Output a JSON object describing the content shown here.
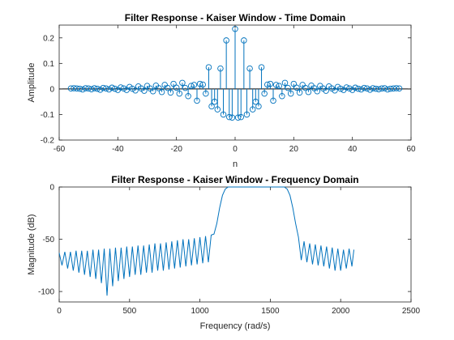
{
  "chart_data": [
    {
      "type": "stem",
      "title": "Filter Response - Kaiser Window - Time Domain",
      "xlabel": "n",
      "ylabel": "Amplitude",
      "xlim": [
        -60,
        60
      ],
      "ylim": [
        -0.2,
        0.25
      ],
      "xticks": [
        -60,
        -40,
        -20,
        0,
        20,
        40,
        60
      ],
      "yticks": [
        -0.2,
        -0.1,
        0,
        0.1,
        0.2
      ],
      "xtick_labels": [
        "-60",
        "-40",
        "-20",
        "0",
        "20",
        "40",
        "60"
      ],
      "ytick_labels": [
        "-0.2",
        "-0.1",
        "0",
        "0.1",
        "0.2"
      ],
      "baseline": 0,
      "color": "#0072BD",
      "x": [
        -56,
        -55,
        -54,
        -53,
        -52,
        -51,
        -50,
        -49,
        -48,
        -47,
        -46,
        -45,
        -44,
        -43,
        -42,
        -41,
        -40,
        -39,
        -38,
        -37,
        -36,
        -35,
        -34,
        -33,
        -32,
        -31,
        -30,
        -29,
        -28,
        -27,
        -26,
        -25,
        -24,
        -23,
        -22,
        -21,
        -20,
        -19,
        -18,
        -17,
        -16,
        -15,
        -14,
        -13,
        -12,
        -11,
        -10,
        -9,
        -8,
        -7,
        -6,
        -5,
        -4,
        -3,
        -2,
        -1,
        0,
        1,
        2,
        3,
        4,
        5,
        6,
        7,
        8,
        9,
        10,
        11,
        12,
        13,
        14,
        15,
        16,
        17,
        18,
        19,
        20,
        21,
        22,
        23,
        24,
        25,
        26,
        27,
        28,
        29,
        30,
        31,
        32,
        33,
        34,
        35,
        36,
        37,
        38,
        39,
        40,
        41,
        42,
        43,
        44,
        45,
        46,
        47,
        48,
        49,
        50,
        51,
        52,
        53,
        54,
        55,
        56
      ],
      "y": [
        0.002,
        0.003,
        0.002,
        0.001,
        -0.002,
        0.003,
        0.002,
        -0.001,
        0.003,
        0.001,
        -0.003,
        0.004,
        0.002,
        -0.002,
        0.005,
        0.001,
        -0.004,
        0.006,
        0.002,
        -0.004,
        0.008,
        0.001,
        -0.006,
        0.01,
        0.002,
        -0.007,
        0.012,
        0.002,
        -0.009,
        0.013,
        0.003,
        -0.012,
        0.016,
        0.004,
        -0.014,
        0.02,
        0.005,
        -0.018,
        0.024,
        0.004,
        -0.028,
        0.012,
        0.016,
        -0.046,
        0.02,
        0.017,
        -0.018,
        0.085,
        -0.068,
        -0.05,
        -0.08,
        0.08,
        -0.1,
        0.19,
        -0.11,
        -0.112,
        0.235,
        -0.112,
        -0.11,
        0.19,
        -0.1,
        0.08,
        -0.08,
        -0.05,
        -0.068,
        0.085,
        -0.018,
        0.017,
        0.02,
        -0.046,
        0.016,
        0.012,
        -0.028,
        0.024,
        0.004,
        -0.018,
        0.02,
        0.005,
        -0.014,
        0.016,
        0.004,
        -0.012,
        0.013,
        0.003,
        -0.009,
        0.012,
        0.002,
        -0.007,
        0.01,
        0.002,
        -0.006,
        0.008,
        0.001,
        -0.004,
        0.006,
        0.002,
        -0.004,
        0.005,
        0.001,
        -0.002,
        0.004,
        0.002,
        -0.003,
        0.003,
        0.001,
        -0.001,
        0.002,
        0.003,
        -0.002,
        0.001,
        0.002,
        0.003,
        0.002
      ]
    },
    {
      "type": "line",
      "title": "Filter Response - Kaiser Window - Frequency Domain",
      "xlabel": "Frequency (rad/s)",
      "ylabel": "Magnitude (dB)",
      "xlim": [
        0,
        2500
      ],
      "ylim": [
        -110,
        0
      ],
      "xticks": [
        0,
        500,
        1000,
        1500,
        2000,
        2500
      ],
      "yticks": [
        -100,
        -50,
        0
      ],
      "xtick_labels": [
        "0",
        "500",
        "1000",
        "1500",
        "2000",
        "2500"
      ],
      "ytick_labels": [
        "-100",
        "-50",
        "0"
      ],
      "color": "#0072BD",
      "x_range": [
        0,
        2094
      ],
      "description_points": {
        "stopband_low_end": 1100,
        "passband_start": 1200,
        "passband_end": 1600,
        "stopband_high_start": 1700,
        "passband_level_db": 0,
        "lobe_peak_start_db": -63,
        "lobe_peak_near_edge_db": -47,
        "null_depth_db": -100
      },
      "x": [
        0,
        20,
        40,
        60,
        80,
        100,
        120,
        140,
        160,
        180,
        200,
        220,
        240,
        260,
        280,
        300,
        320,
        340,
        360,
        380,
        400,
        420,
        440,
        460,
        480,
        500,
        520,
        540,
        560,
        580,
        600,
        620,
        640,
        660,
        680,
        700,
        720,
        740,
        760,
        780,
        800,
        820,
        840,
        860,
        880,
        900,
        920,
        940,
        960,
        980,
        1000,
        1020,
        1040,
        1060,
        1080,
        1100,
        1120,
        1140,
        1160,
        1180,
        1200,
        1220,
        1240,
        1260,
        1280,
        1300,
        1320,
        1340,
        1360,
        1380,
        1400,
        1420,
        1440,
        1460,
        1480,
        1500,
        1520,
        1540,
        1560,
        1580,
        1600,
        1620,
        1640,
        1660,
        1680,
        1700,
        1720,
        1740,
        1760,
        1780,
        1800,
        1820,
        1840,
        1860,
        1880,
        1900,
        1920,
        1940,
        1960,
        1980,
        2000,
        2020,
        2040,
        2060,
        2080,
        2094
      ],
      "y": [
        -63,
        -75,
        -62,
        -78,
        -62,
        -80,
        -61,
        -82,
        -61,
        -84,
        -61,
        -86,
        -60,
        -88,
        -60,
        -92,
        -59,
        -104,
        -59,
        -95,
        -58,
        -90,
        -58,
        -88,
        -57,
        -86,
        -57,
        -84,
        -56,
        -84,
        -56,
        -82,
        -55,
        -82,
        -54,
        -80,
        -54,
        -80,
        -53,
        -79,
        -52,
        -78,
        -51,
        -77,
        -50,
        -76,
        -50,
        -75,
        -49,
        -74,
        -48,
        -73,
        -47,
        -72,
        -46,
        -45,
        -35,
        -20,
        -8,
        -2,
        0,
        0,
        0,
        0,
        0,
        0,
        0,
        0,
        0,
        0,
        0,
        0,
        0,
        0,
        0,
        0,
        0,
        0,
        0,
        0,
        0,
        -2,
        -8,
        -20,
        -35,
        -48,
        -70,
        -52,
        -72,
        -54,
        -74,
        -55,
        -75,
        -56,
        -76,
        -57,
        -78,
        -58,
        -80,
        -59,
        -80,
        -60,
        -78,
        -59,
        -76,
        -60
      ]
    }
  ]
}
